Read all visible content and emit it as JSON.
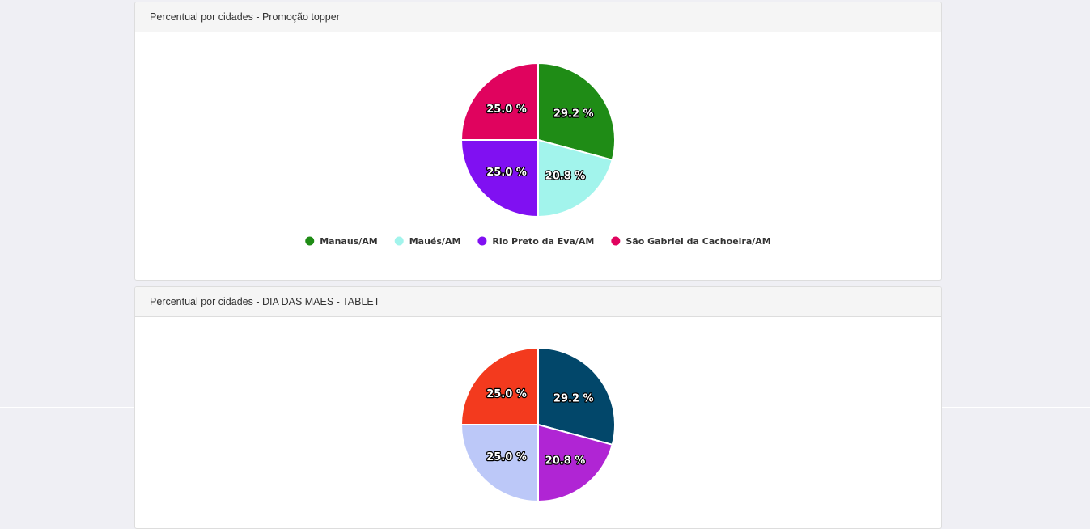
{
  "panels": [
    {
      "title": "Percentual por cidades - Promoção topper"
    },
    {
      "title": "Percentual por cidades - DIA DAS MAES - TABLET"
    }
  ],
  "chart_data": [
    {
      "type": "pie",
      "title": "Percentual por cidades - Promoção topper",
      "categories": [
        "Manaus/AM",
        "Maués/AM",
        "Rio Preto da Eva/AM",
        "São Gabriel da Cachoeira/AM"
      ],
      "values": [
        29.2,
        20.8,
        25.0,
        25.0
      ],
      "labels": [
        "29.2 %",
        "20.8 %",
        "25.0 %",
        "25.0 %"
      ],
      "colors": [
        "#1f8c16",
        "#a2f4ec",
        "#8010f2",
        "#e0035e"
      ],
      "legend": "bottom"
    },
    {
      "type": "pie",
      "title": "Percentual por cidades - DIA DAS MAES - TABLET",
      "categories": [
        "",
        "",
        "",
        ""
      ],
      "values": [
        29.2,
        20.8,
        25.0,
        25.0
      ],
      "labels": [
        "29.2 %",
        "20.8 %",
        "25.0 %",
        "25.0 %"
      ],
      "colors": [
        "#02476a",
        "#b025d4",
        "#bcc8f8",
        "#f33a1e"
      ],
      "legend": "none"
    }
  ]
}
